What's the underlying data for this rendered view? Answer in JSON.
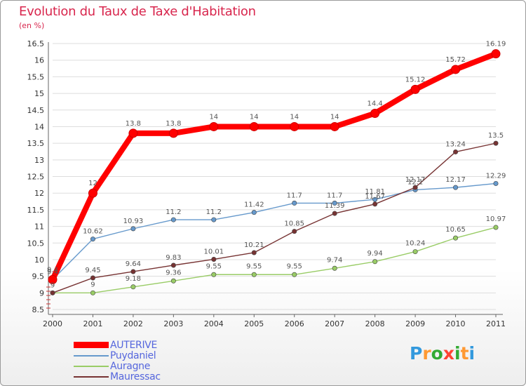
{
  "title": "Evolution du Taux de Taxe d'Habitation",
  "unit_label": "(en %)",
  "logo_text": "Proxiti",
  "chart_data": {
    "type": "line",
    "title": "Evolution du Taux de Taxe d'Habitation",
    "ylabel": "(en %)",
    "xlabel": "",
    "x": [
      "2000",
      "2001",
      "2002",
      "2003",
      "2004",
      "2005",
      "2006",
      "2007",
      "2008",
      "2009",
      "2010",
      "2011"
    ],
    "ylim": [
      8.5,
      16.5
    ],
    "y_ticks": [
      "8.5",
      "9",
      "9.5",
      "10",
      "10.5",
      "11",
      "11.5",
      "12",
      "12.5",
      "13",
      "13.5",
      "14",
      "14.5",
      "15",
      "15.5",
      "16",
      "16.5"
    ],
    "grid": "horizontal",
    "legend_position": "bottom-left",
    "series": [
      {
        "name": "AUTERIVE",
        "color": "#ff0000",
        "values": [
          9.4,
          12,
          13.8,
          13.8,
          14,
          14,
          14,
          14,
          14.4,
          15.12,
          15.72,
          16.19
        ],
        "labels": [
          "9.4",
          "12",
          "13.8",
          "13.8",
          "14",
          "14",
          "14",
          "14",
          "14.4",
          "15.12",
          "15.72",
          "16.19"
        ]
      },
      {
        "name": "Puydaniel",
        "color": "#6699cc",
        "values": [
          9.4,
          10.62,
          10.93,
          11.2,
          11.2,
          11.42,
          11.7,
          11.7,
          11.81,
          12.1,
          12.17,
          12.29
        ],
        "labels": [
          "9.4",
          "10.62",
          "10.93",
          "11.2",
          "11.2",
          "11.42",
          "11.7",
          "11.7",
          "11.81",
          "12.1",
          "12.17",
          "12.29"
        ]
      },
      {
        "name": "Auragne",
        "color": "#99cc66",
        "values": [
          9,
          9,
          9.18,
          9.36,
          9.55,
          9.55,
          9.55,
          9.74,
          9.94,
          10.24,
          10.65,
          10.97
        ],
        "labels": [
          "",
          "9",
          "9.18",
          "9.36",
          "9.55",
          "9.55",
          "9.55",
          "9.74",
          "9.94",
          "10.24",
          "10.65",
          "10.97"
        ]
      },
      {
        "name": "Mauressac",
        "color": "#773333",
        "values": [
          9,
          9.45,
          9.64,
          9.83,
          10.01,
          10.21,
          10.85,
          11.39,
          11.67,
          12.17,
          13.24,
          13.5
        ],
        "labels": [
          "9",
          "9.45",
          "9.64",
          "9.83",
          "10.01",
          "10.21",
          "10.85",
          "11.39",
          "11.67",
          "12.17",
          "13.24",
          "13.5"
        ]
      }
    ]
  }
}
